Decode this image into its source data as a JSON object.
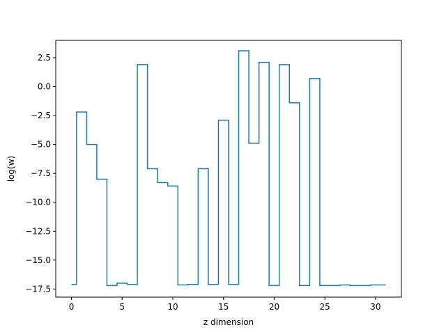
{
  "chart_data": {
    "type": "line",
    "drawstyle": "steps-mid",
    "title": "",
    "xlabel": "z dimension",
    "ylabel": "log(w)",
    "xlim": [
      -1.55,
      32.55
    ],
    "ylim": [
      -18.2,
      4.0
    ],
    "xticks": [
      0,
      5,
      10,
      15,
      20,
      25,
      30
    ],
    "yticks": [
      -17.5,
      -15.0,
      -12.5,
      -10.0,
      -7.5,
      -5.0,
      -2.5,
      0.0,
      2.5
    ],
    "ytick_labels": [
      "−17.5",
      "−15.0",
      "−12.5",
      "−10.0",
      "−7.5",
      "−5.0",
      "−2.5",
      "0.0",
      "2.5"
    ],
    "grid": false,
    "series": [
      {
        "color": "#1f77b4",
        "x": [
          0,
          1,
          2,
          3,
          4,
          5,
          6,
          7,
          8,
          9,
          10,
          11,
          12,
          13,
          14,
          15,
          16,
          17,
          18,
          19,
          20,
          21,
          22,
          23,
          24,
          25,
          26,
          27,
          28,
          29,
          30,
          31
        ],
        "y": [
          -17.1,
          -2.2,
          -5.0,
          -8.0,
          -17.2,
          -17.0,
          -17.1,
          1.9,
          -7.1,
          -8.3,
          -8.6,
          -17.15,
          -17.1,
          -7.1,
          -17.1,
          -2.9,
          -17.1,
          3.1,
          -4.9,
          2.1,
          -17.2,
          1.9,
          -1.4,
          -17.2,
          0.7,
          -17.2,
          -17.2,
          -17.15,
          -17.2,
          -17.2,
          -17.15,
          -17.15
        ]
      }
    ]
  }
}
